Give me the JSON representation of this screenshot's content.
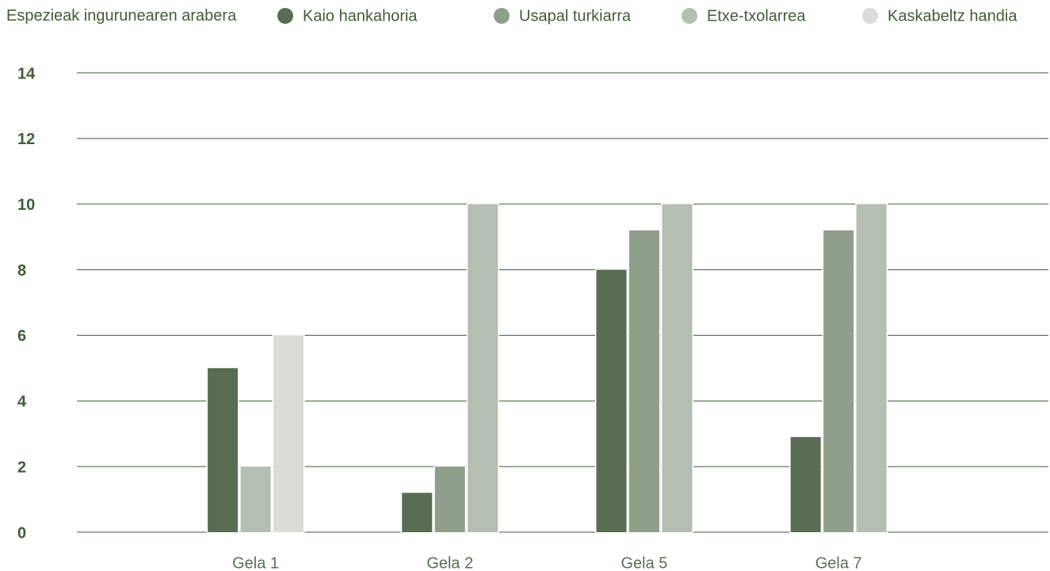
{
  "chart_data": {
    "type": "bar",
    "title": "Espezieak ingurunearen arabera",
    "categories": [
      "Gela 1",
      "Gela 2",
      "Gela 5",
      "Gela 7"
    ],
    "series": [
      {
        "name": "Kaio hankahoria",
        "color": "#586d52",
        "values": [
          5,
          1.2,
          8,
          2.9
        ]
      },
      {
        "name": "Usapal turkiarra",
        "color": "#8f9f8a",
        "values": [
          null,
          2,
          9.2,
          9.2
        ]
      },
      {
        "name": "Etxe-txolarrea",
        "color": "#b4beb1",
        "values": [
          2,
          10,
          10,
          10
        ]
      },
      {
        "name": "Kaskabeltz handia",
        "color": "#d9ddd6",
        "values": [
          6,
          null,
          null,
          null
        ]
      }
    ],
    "ylim": [
      0,
      14
    ],
    "yticks": [
      0,
      2,
      4,
      6,
      8,
      10,
      12,
      14
    ],
    "grid": true,
    "legend": "top"
  }
}
